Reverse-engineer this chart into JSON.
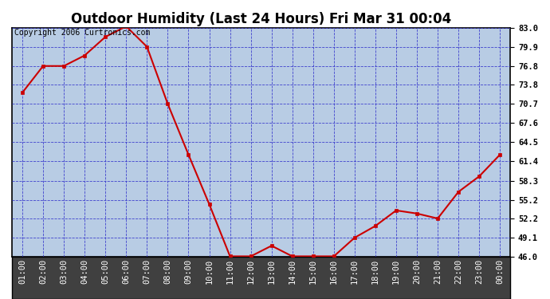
{
  "title": "Outdoor Humidity (Last 24 Hours) Fri Mar 31 00:04",
  "copyright_text": "Copyright 2006 Curtronics.com",
  "fig_bg_color": "#ffffff",
  "plot_bg_color": "#b8cce4",
  "line_color": "#cc0000",
  "marker_color": "#cc0000",
  "grid_color": "#3333cc",
  "x_labels": [
    "01:00",
    "02:00",
    "03:00",
    "04:00",
    "05:00",
    "06:00",
    "07:00",
    "08:00",
    "09:00",
    "10:00",
    "11:00",
    "12:00",
    "13:00",
    "14:00",
    "15:00",
    "16:00",
    "17:00",
    "18:00",
    "19:00",
    "20:00",
    "21:00",
    "22:00",
    "23:00",
    "00:00"
  ],
  "y_values": [
    72.5,
    76.8,
    76.8,
    78.5,
    81.5,
    83.2,
    79.9,
    70.7,
    62.5,
    54.5,
    46.1,
    46.1,
    47.8,
    46.1,
    46.1,
    46.1,
    49.1,
    51.0,
    53.5,
    53.0,
    52.2,
    56.5,
    59.0,
    62.5
  ],
  "ylim_min": 46.0,
  "ylim_max": 83.0,
  "y_ticks": [
    46.0,
    49.1,
    52.2,
    55.2,
    58.3,
    61.4,
    64.5,
    67.6,
    70.7,
    73.8,
    76.8,
    79.9,
    83.0
  ],
  "title_fontsize": 12,
  "axis_label_fontsize": 7.5,
  "copyright_fontsize": 7,
  "xlabel_bg_color": "#404040"
}
